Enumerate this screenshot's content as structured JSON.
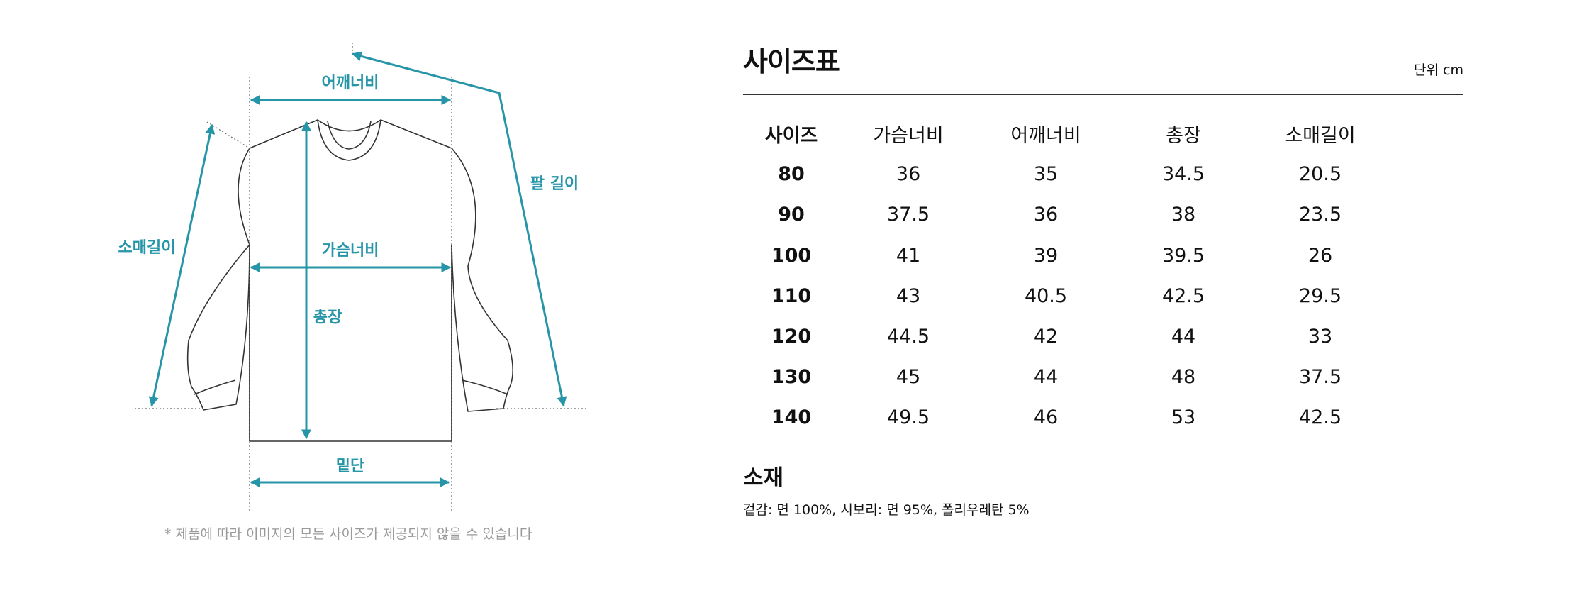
{
  "diagram": {
    "labels": {
      "shoulder": "어깨너비",
      "arm": "팔 길이",
      "sleeve": "소매길이",
      "chest": "가슴너비",
      "length": "총장",
      "hem": "밑단"
    },
    "note": "* 제품에 따라 이미지의 모든 사이즈가 제공되지 않을 수 있습니다",
    "accent_color": "#2595a7"
  },
  "size_table": {
    "title": "사이즈표",
    "unit": "단위 cm",
    "headers": [
      "사이즈",
      "가슴너비",
      "어깨너비",
      "총장",
      "소매길이"
    ],
    "rows": [
      [
        "80",
        "36",
        "35",
        "34.5",
        "20.5"
      ],
      [
        "90",
        "37.5",
        "36",
        "38",
        "23.5"
      ],
      [
        "100",
        "41",
        "39",
        "39.5",
        "26"
      ],
      [
        "110",
        "43",
        "40.5",
        "42.5",
        "29.5"
      ],
      [
        "120",
        "44.5",
        "42",
        "44",
        "33"
      ],
      [
        "130",
        "45",
        "44",
        "48",
        "37.5"
      ],
      [
        "140",
        "49.5",
        "46",
        "53",
        "42.5"
      ]
    ]
  },
  "material": {
    "title": "소재",
    "text": "겉감: 면 100%, 시보리: 면 95%, 폴리우레탄 5%"
  }
}
